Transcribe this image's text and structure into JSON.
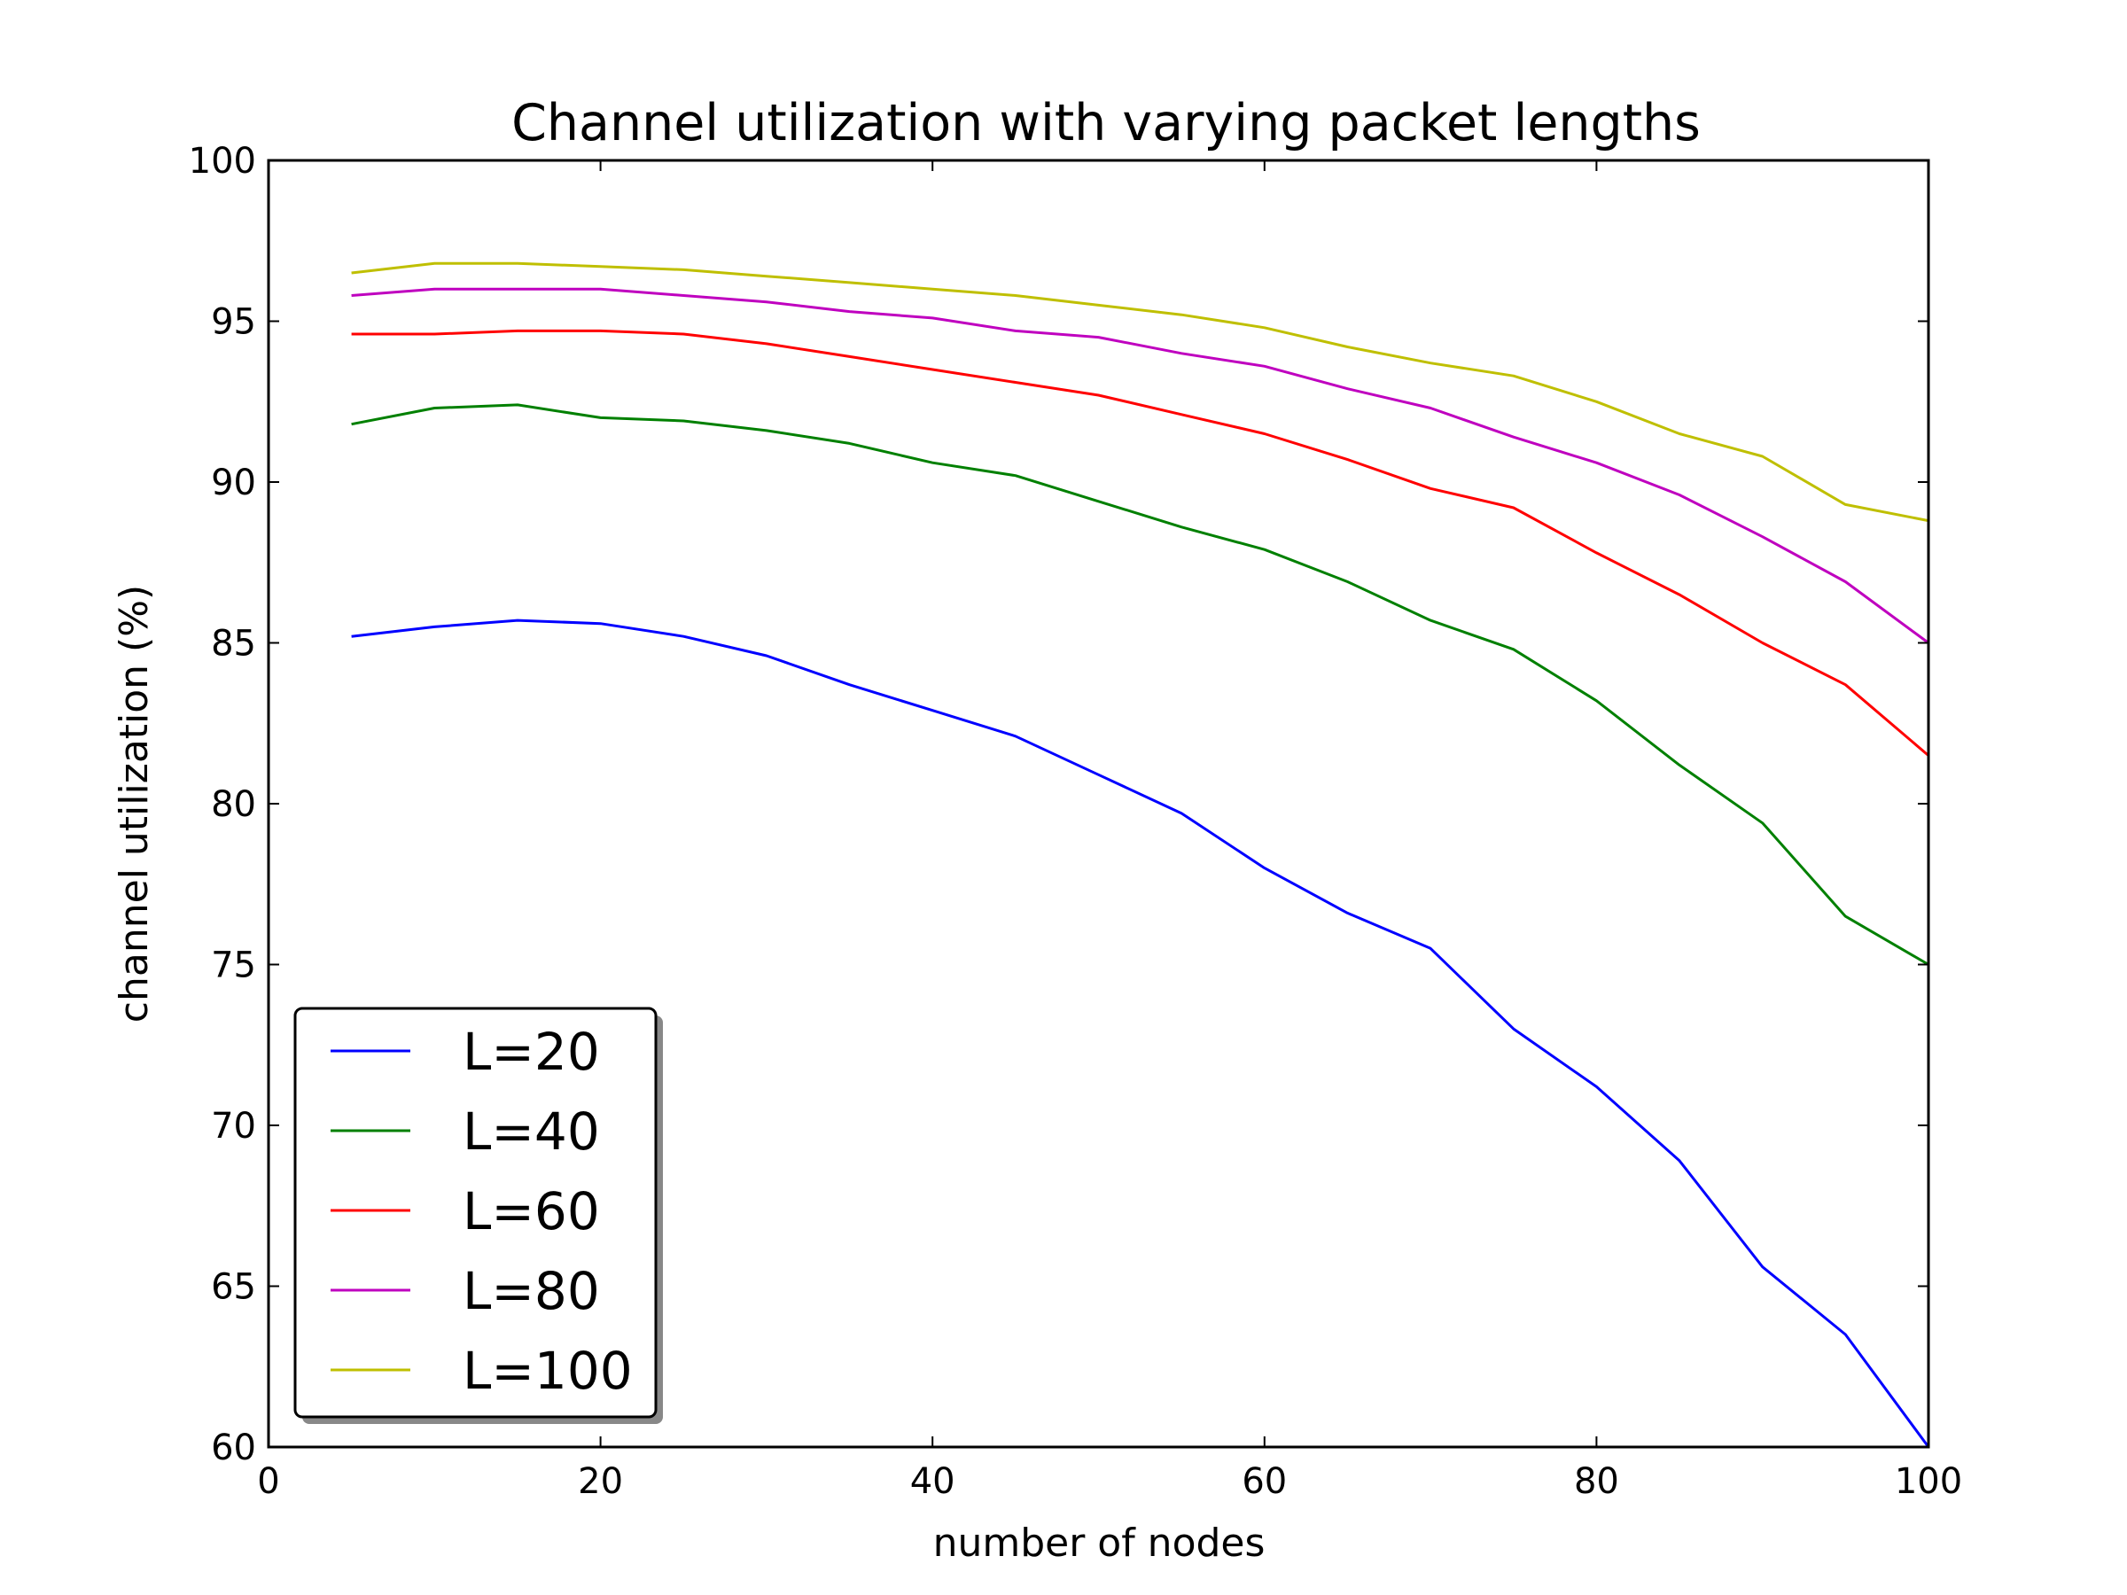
{
  "chart_data": {
    "type": "line",
    "title": "Channel utilization with varying packet lengths",
    "xlabel": "number of nodes",
    "ylabel": "channel utilization (%)",
    "xlim": [
      0,
      100
    ],
    "ylim": [
      60,
      100
    ],
    "xticks": [
      0,
      20,
      40,
      60,
      80,
      100
    ],
    "yticks": [
      60,
      65,
      70,
      75,
      80,
      85,
      90,
      95,
      100
    ],
    "grid": false,
    "legend_position": "lower-left",
    "x": [
      5,
      10,
      15,
      20,
      25,
      30,
      35,
      40,
      45,
      50,
      55,
      60,
      65,
      70,
      75,
      80,
      85,
      90,
      95,
      100
    ],
    "series": [
      {
        "name": "L=20",
        "color": "#0000ff",
        "values": [
          85.2,
          85.5,
          85.7,
          85.6,
          85.2,
          84.6,
          83.7,
          82.9,
          82.1,
          80.9,
          79.7,
          78.0,
          76.6,
          75.5,
          73.0,
          71.2,
          68.9,
          65.6,
          63.5,
          60.0
        ]
      },
      {
        "name": "L=40",
        "color": "#008000",
        "values": [
          91.8,
          92.3,
          92.4,
          92.0,
          91.9,
          91.6,
          91.2,
          90.6,
          90.2,
          89.4,
          88.6,
          87.9,
          86.9,
          85.7,
          84.8,
          83.2,
          81.2,
          79.4,
          76.5,
          75.0
        ]
      },
      {
        "name": "L=60",
        "color": "#ff0000",
        "values": [
          94.6,
          94.6,
          94.7,
          94.7,
          94.6,
          94.3,
          93.9,
          93.5,
          93.1,
          92.7,
          92.1,
          91.5,
          90.7,
          89.8,
          89.2,
          87.8,
          86.5,
          85.0,
          83.7,
          81.5
        ]
      },
      {
        "name": "L=80",
        "color": "#bf00bf",
        "values": [
          95.8,
          96.0,
          96.0,
          96.0,
          95.8,
          95.6,
          95.3,
          95.1,
          94.7,
          94.5,
          94.0,
          93.6,
          92.9,
          92.3,
          91.4,
          90.6,
          89.6,
          88.3,
          86.9,
          85.0
        ]
      },
      {
        "name": "L=100",
        "color": "#bfbf00",
        "values": [
          96.5,
          96.8,
          96.8,
          96.7,
          96.6,
          96.4,
          96.2,
          96.0,
          95.8,
          95.5,
          95.2,
          94.8,
          94.2,
          93.7,
          93.3,
          92.5,
          91.5,
          90.8,
          89.3,
          88.8
        ]
      }
    ]
  }
}
